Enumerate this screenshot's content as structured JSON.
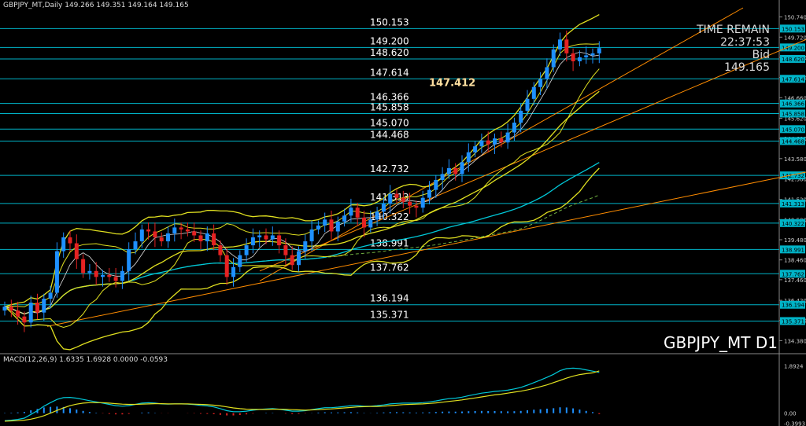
{
  "title_bar": "GBPJPY_MT,Daily  149.266 149.351 149.164 149.165",
  "symbol_label": "GBPJPY_MT D1",
  "time_remain": {
    "label": "TIME REMAIN",
    "value": "22:37:53",
    "bid_label": "Bid",
    "bid_value": "149.165"
  },
  "macd_label": "MACD(12,26,9) 1.6335 1.6928 0.0000 -0.0593",
  "highlight_price": "147.412",
  "colors": {
    "candle_up": "#1e90ff",
    "candle_down": "#e52222",
    "level_line": "#00b4c8",
    "yellow": "#e0e020",
    "orange": "#ff8c00",
    "cyan": "#00c8d8"
  },
  "chart_data": {
    "type": "candlestick",
    "y_axis_ticks": [
      "150.740",
      "149.720",
      "148.700",
      "147.680",
      "146.660",
      "145.620",
      "144.600",
      "143.580",
      "142.560",
      "141.520",
      "140.500",
      "139.480",
      "138.460",
      "137.460",
      "136.420",
      "135.400",
      "134.380"
    ],
    "y_range": [
      133.8,
      151.2
    ],
    "levels": [
      {
        "value": 150.153,
        "label": "150.153"
      },
      {
        "value": 149.2,
        "label": "149.200"
      },
      {
        "value": 148.62,
        "label": "148.620"
      },
      {
        "value": 147.614,
        "label": "147.614"
      },
      {
        "value": 146.366,
        "label": "146.366"
      },
      {
        "value": 145.858,
        "label": "145.858"
      },
      {
        "value": 145.07,
        "label": "145.070"
      },
      {
        "value": 144.468,
        "label": "144.468"
      },
      {
        "value": 142.732,
        "label": "142.732"
      },
      {
        "value": 141.313,
        "label": "141.313"
      },
      {
        "value": 140.322,
        "label": "140.322"
      },
      {
        "value": 138.991,
        "label": "138.991"
      },
      {
        "value": 137.762,
        "label": "137.762"
      },
      {
        "value": 136.194,
        "label": "136.194"
      },
      {
        "value": 135.371,
        "label": "135.371"
      }
    ],
    "close": [
      136.1,
      135.9,
      135.6,
      135.3,
      136.3,
      135.8,
      136.5,
      136.8,
      138.9,
      139.6,
      139.3,
      138.5,
      137.8,
      137.9,
      137.6,
      137.7,
      137.6,
      137.4,
      137.9,
      139.0,
      139.4,
      140.0,
      139.9,
      139.6,
      139.4,
      139.8,
      140.1,
      140.0,
      139.9,
      139.7,
      139.4,
      139.8,
      139.2,
      138.7,
      137.6,
      138.1,
      138.7,
      139.2,
      139.6,
      139.7,
      139.5,
      139.7,
      139.2,
      138.7,
      138.2,
      138.9,
      139.4,
      140.0,
      140.2,
      140.5,
      139.9,
      140.4,
      140.7,
      141.1,
      140.6,
      140.1,
      140.5,
      140.9,
      141.3,
      141.8,
      141.6,
      141.4,
      141.2,
      141.1,
      141.6,
      142.0,
      142.5,
      142.8,
      143.1,
      142.8,
      143.4,
      143.9,
      144.2,
      144.5,
      144.3,
      144.6,
      144.4,
      144.9,
      145.4,
      146.0,
      146.6,
      147.2,
      147.6,
      148.2,
      149.1,
      149.6,
      148.9,
      148.5,
      148.7,
      148.8,
      148.9,
      149.165
    ],
    "candle_direction": "up=close>=open (blue), down=red",
    "macd": {
      "y_ticks": [
        "1.8924",
        "0.00",
        "-0.3993"
      ],
      "y_range": [
        -0.45,
        2.0
      ],
      "macd_line": [
        -0.3,
        -0.28,
        -0.25,
        -0.2,
        -0.05,
        0.1,
        0.28,
        0.42,
        0.55,
        0.62,
        0.63,
        0.6,
        0.55,
        0.5,
        0.45,
        0.4,
        0.35,
        0.3,
        0.28,
        0.3,
        0.35,
        0.4,
        0.42,
        0.4,
        0.37,
        0.36,
        0.37,
        0.37,
        0.36,
        0.34,
        0.31,
        0.29,
        0.25,
        0.18,
        0.1,
        0.06,
        0.06,
        0.08,
        0.12,
        0.15,
        0.17,
        0.18,
        0.16,
        0.12,
        0.08,
        0.08,
        0.1,
        0.14,
        0.18,
        0.22,
        0.22,
        0.24,
        0.27,
        0.3,
        0.3,
        0.28,
        0.28,
        0.3,
        0.33,
        0.37,
        0.39,
        0.4,
        0.4,
        0.4,
        0.42,
        0.45,
        0.49,
        0.54,
        0.58,
        0.6,
        0.64,
        0.7,
        0.75,
        0.8,
        0.83,
        0.87,
        0.89,
        0.92,
        0.97,
        1.03,
        1.12,
        1.22,
        1.32,
        1.43,
        1.55,
        1.7,
        1.78,
        1.8,
        1.78,
        1.73,
        1.68,
        1.63
      ],
      "signal_line": [
        -0.32,
        -0.31,
        -0.3,
        -0.28,
        -0.24,
        -0.18,
        -0.1,
        0.0,
        0.11,
        0.21,
        0.3,
        0.36,
        0.4,
        0.42,
        0.42,
        0.42,
        0.4,
        0.38,
        0.36,
        0.35,
        0.35,
        0.36,
        0.37,
        0.38,
        0.38,
        0.37,
        0.37,
        0.37,
        0.37,
        0.36,
        0.35,
        0.34,
        0.32,
        0.29,
        0.25,
        0.21,
        0.18,
        0.16,
        0.15,
        0.15,
        0.15,
        0.16,
        0.16,
        0.15,
        0.14,
        0.13,
        0.12,
        0.13,
        0.14,
        0.16,
        0.17,
        0.19,
        0.21,
        0.23,
        0.25,
        0.26,
        0.27,
        0.27,
        0.28,
        0.3,
        0.32,
        0.34,
        0.35,
        0.36,
        0.37,
        0.39,
        0.41,
        0.44,
        0.47,
        0.5,
        0.53,
        0.57,
        0.61,
        0.65,
        0.69,
        0.73,
        0.76,
        0.8,
        0.84,
        0.88,
        0.93,
        0.99,
        1.06,
        1.13,
        1.22,
        1.31,
        1.4,
        1.48,
        1.54,
        1.58,
        1.61,
        1.69
      ]
    }
  }
}
